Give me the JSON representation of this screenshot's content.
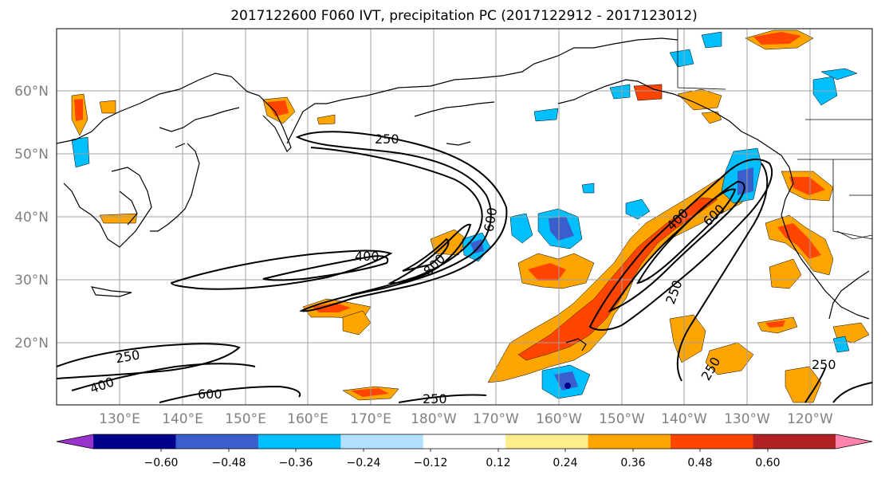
{
  "title": "2017122600 F060 IVT, precipitation PC (2017122912 - 2017123012)",
  "map": {
    "lat_labels": [
      "60°N",
      "50°N",
      "40°N",
      "30°N",
      "20°N"
    ],
    "lon_labels": [
      "130°E",
      "140°E",
      "150°E",
      "160°E",
      "170°E",
      "180°W",
      "170°W",
      "160°W",
      "150°W",
      "140°W",
      "130°W",
      "120°W"
    ],
    "contour_labels": [
      "250",
      "400",
      "600",
      "800",
      "400",
      "600",
      "250",
      "250",
      "250",
      "400",
      "600",
      "250",
      "250"
    ]
  },
  "colorbar": {
    "colors": [
      "#9a32cd",
      "#00008b",
      "#3a5fcd",
      "#00bfff",
      "#b0e2ff",
      "#ffffff",
      "#ffec8b",
      "#ffa500",
      "#ff4500",
      "#b22222",
      "#ff82ab"
    ],
    "tick_labels": [
      "−0.60",
      "−0.48",
      "−0.36",
      "−0.24",
      "−0.12",
      "0.12",
      "0.24",
      "0.36",
      "0.48",
      "0.60"
    ]
  }
}
